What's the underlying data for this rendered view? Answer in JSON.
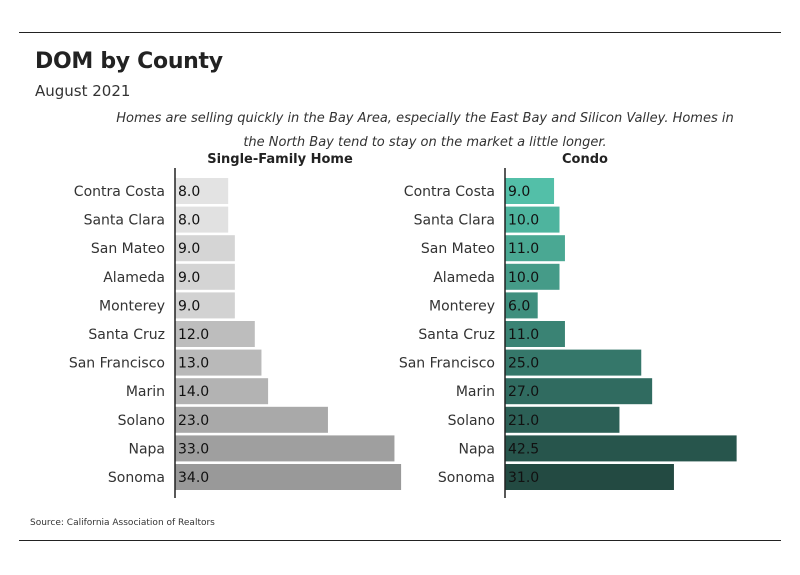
{
  "title": "DOM by County",
  "subtitle": "August 2021",
  "note": "Homes are selling quickly in the Bay Area, especially the East Bay and Silicon Valley. Homes in the North Bay tend to stay on the market a little longer.",
  "source": "Source:  California Association of Realtors",
  "chart_data": [
    {
      "type": "bar",
      "orientation": "horizontal",
      "title": "Single-Family Home",
      "categories": [
        "Contra Costa",
        "Santa Clara",
        "San Mateo",
        "Alameda",
        "Monterey",
        "Santa Cruz",
        "San Francisco",
        "Marin",
        "Solano",
        "Napa",
        "Sonoma"
      ],
      "values": [
        8.0,
        8.0,
        9.0,
        9.0,
        9.0,
        12.0,
        13.0,
        14.0,
        23.0,
        33.0,
        34.0
      ],
      "value_labels": [
        "8.0",
        "8.0",
        "9.0",
        "9.0",
        "9.0",
        "12.0",
        "13.0",
        "14.0",
        "23.0",
        "33.0",
        "34.0"
      ],
      "colors": [
        "#e3e3e3",
        "#e1e1e1",
        "#d5d5d5",
        "#d4d4d4",
        "#d2d2d2",
        "#bdbdbd",
        "#b9b9b9",
        "#b3b3b3",
        "#a9a9a9",
        "#9f9f9f",
        "#999999"
      ]
    },
    {
      "type": "bar",
      "orientation": "horizontal",
      "title": "Condo",
      "categories": [
        "Contra Costa",
        "Santa Clara",
        "San Mateo",
        "Alameda",
        "Monterey",
        "Santa Cruz",
        "San Francisco",
        "Marin",
        "Solano",
        "Napa",
        "Sonoma"
      ],
      "values": [
        9.0,
        10.0,
        11.0,
        10.0,
        6.0,
        11.0,
        25.0,
        27.0,
        21.0,
        42.5,
        31.0
      ],
      "value_labels": [
        "9.0",
        "10.0",
        "11.0",
        "10.0",
        "6.0",
        "11.0",
        "25.0",
        "27.0",
        "21.0",
        "42.5",
        "31.0"
      ],
      "colors": [
        "#53bfa8",
        "#4eb49e",
        "#4aa893",
        "#459b88",
        "#3f8f7e",
        "#3a8374",
        "#35776a",
        "#306b60",
        "#2c6056",
        "#27554c",
        "#234a42"
      ]
    }
  ]
}
